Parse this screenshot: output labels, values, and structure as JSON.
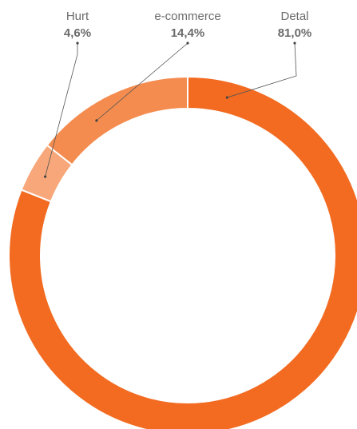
{
  "chart_data": {
    "type": "pie",
    "variant": "donut",
    "title": "",
    "slices": [
      {
        "label": "Detal",
        "value": 81.0,
        "value_label": "81,0%",
        "color": "#f26b21"
      },
      {
        "label": "Hurt",
        "value": 4.6,
        "value_label": "4,6%",
        "color": "#f7a779"
      },
      {
        "label": "e-commerce",
        "value": 14.4,
        "value_label": "14,4%",
        "color": "#f58c4f"
      }
    ],
    "start": "top, clockwise",
    "slice_separator_color": "#ffffff",
    "legend": "none",
    "label_placement": "above chart with leader lines"
  }
}
